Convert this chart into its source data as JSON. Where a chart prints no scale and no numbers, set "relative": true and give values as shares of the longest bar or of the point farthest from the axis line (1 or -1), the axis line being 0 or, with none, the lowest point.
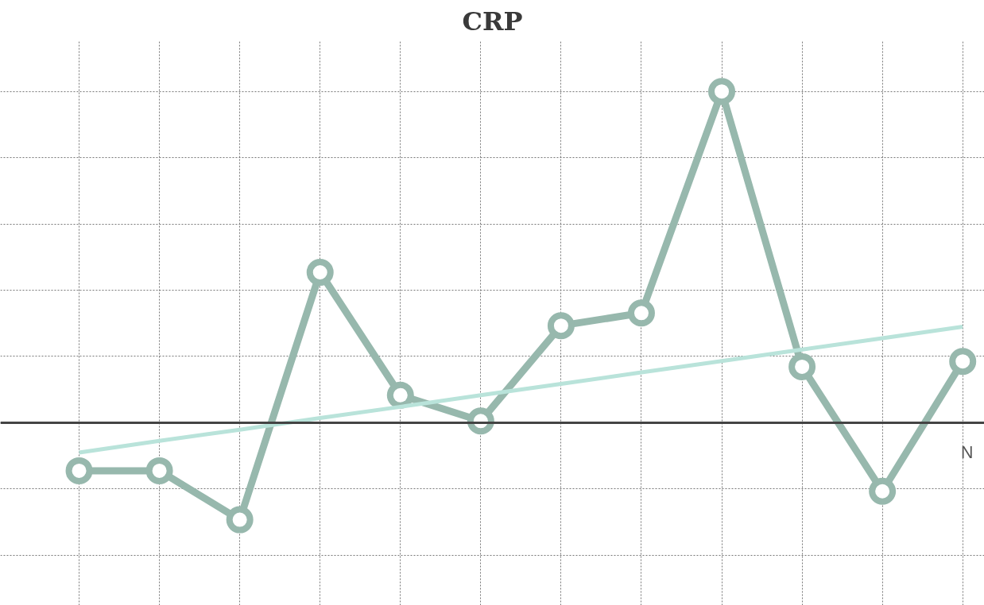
{
  "chart_data": {
    "type": "line",
    "title": "CRP",
    "relative": true,
    "categories": [
      null,
      null,
      null,
      null,
      null,
      null,
      null,
      null,
      null,
      null,
      null,
      null
    ],
    "tick_labels": false,
    "grid": true,
    "marker": "circle",
    "line_style": "solid",
    "annotations": [
      "N"
    ],
    "series": [
      {
        "color": "#97b8ad",
        "values": [
          -0.145,
          -0.145,
          -0.293,
          0.454,
          0.083,
          0.005,
          0.293,
          0.331,
          1,
          0.169,
          -0.207,
          0.185
        ]
      },
      {
        "marker": "none",
        "color": "#b9e3da",
        "values": [
          -0.09,
          -0.055,
          -0.021,
          0.014,
          0.048,
          0.083,
          0.117,
          0.152,
          0.186,
          0.221,
          0.255,
          0.29
        ]
      }
    ]
  }
}
